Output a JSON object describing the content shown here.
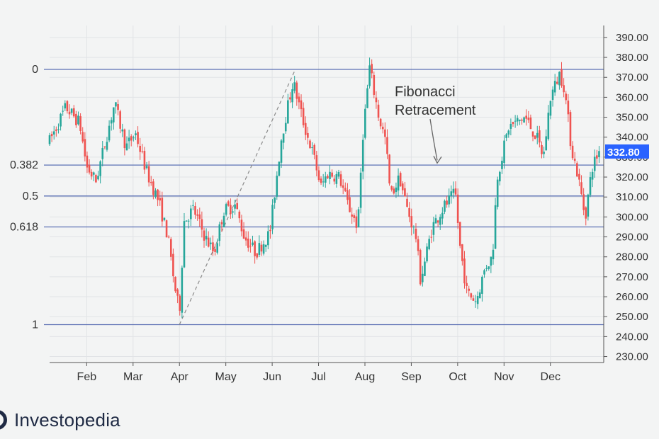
{
  "chart_data": {
    "type": "candlestick",
    "y_axis": {
      "ticks": [
        "390.00",
        "380.00",
        "370.00",
        "360.00",
        "350.00",
        "340.00",
        "330.00",
        "320.00",
        "310.00",
        "300.00",
        "290.00",
        "280.00",
        "270.00",
        "260.00",
        "250.00",
        "240.00",
        "230.00"
      ],
      "tick_values": [
        390,
        380,
        370,
        360,
        350,
        340,
        330,
        320,
        310,
        300,
        290,
        280,
        270,
        260,
        250,
        240,
        230
      ],
      "range": [
        227,
        396
      ],
      "position": "right"
    },
    "x_axis": {
      "ticks": [
        "Feb",
        "Mar",
        "Apr",
        "May",
        "Jun",
        "Jul",
        "Aug",
        "Sep",
        "Oct",
        "Nov",
        "Dec"
      ],
      "tick_positions": [
        1,
        2,
        3,
        4,
        5,
        6,
        7,
        8,
        9,
        10,
        11
      ],
      "range": [
        0.2,
        12.15
      ]
    },
    "last_price": {
      "label": "332.80",
      "value": 332.8,
      "color": "#2962ff"
    },
    "fib_levels": [
      {
        "label": "0",
        "value": 374
      },
      {
        "label": "0.382",
        "value": 326
      },
      {
        "label": "0.5",
        "value": 310.5
      },
      {
        "label": "0.618",
        "value": 295
      },
      {
        "label": "1",
        "value": 246
      }
    ],
    "trend_line": {
      "from": {
        "x": 3.0,
        "y": 246
      },
      "to": {
        "x": 5.5,
        "y": 374
      }
    },
    "annotation": {
      "lines": [
        "Fibonacci",
        "Retracement"
      ],
      "arrow_target_value": 327
    },
    "colors": {
      "up": "#26a69a",
      "down": "#ef5350",
      "fib_line": "#5b6fb3",
      "grid": "#e1e3e6"
    },
    "key_prices": [
      {
        "x": 0.2,
        "value": 338
      },
      {
        "x": 0.55,
        "value": 355
      },
      {
        "x": 0.85,
        "value": 347
      },
      {
        "x": 1.0,
        "value": 325
      },
      {
        "x": 1.2,
        "value": 318
      },
      {
        "x": 1.6,
        "value": 357
      },
      {
        "x": 1.85,
        "value": 335
      },
      {
        "x": 2.05,
        "value": 342
      },
      {
        "x": 2.3,
        "value": 322
      },
      {
        "x": 2.55,
        "value": 308
      },
      {
        "x": 2.75,
        "value": 290
      },
      {
        "x": 2.9,
        "value": 265
      },
      {
        "x": 3.0,
        "value": 252
      },
      {
        "x": 3.1,
        "value": 298
      },
      {
        "x": 3.3,
        "value": 304
      },
      {
        "x": 3.55,
        "value": 290
      },
      {
        "x": 3.75,
        "value": 282
      },
      {
        "x": 3.95,
        "value": 303
      },
      {
        "x": 4.2,
        "value": 306
      },
      {
        "x": 4.4,
        "value": 290
      },
      {
        "x": 4.65,
        "value": 282
      },
      {
        "x": 4.95,
        "value": 292
      },
      {
        "x": 5.2,
        "value": 340
      },
      {
        "x": 5.45,
        "value": 368
      },
      {
        "x": 5.7,
        "value": 345
      },
      {
        "x": 5.9,
        "value": 330
      },
      {
        "x": 6.05,
        "value": 315
      },
      {
        "x": 6.2,
        "value": 322
      },
      {
        "x": 6.45,
        "value": 320
      },
      {
        "x": 6.65,
        "value": 305
      },
      {
        "x": 6.85,
        "value": 295
      },
      {
        "x": 6.95,
        "value": 340
      },
      {
        "x": 7.1,
        "value": 375
      },
      {
        "x": 7.3,
        "value": 350
      },
      {
        "x": 7.45,
        "value": 338
      },
      {
        "x": 7.55,
        "value": 310
      },
      {
        "x": 7.75,
        "value": 320
      },
      {
        "x": 7.9,
        "value": 305
      },
      {
        "x": 8.1,
        "value": 290
      },
      {
        "x": 8.2,
        "value": 268
      },
      {
        "x": 8.45,
        "value": 295
      },
      {
        "x": 8.7,
        "value": 305
      },
      {
        "x": 8.95,
        "value": 312
      },
      {
        "x": 9.05,
        "value": 285
      },
      {
        "x": 9.2,
        "value": 262
      },
      {
        "x": 9.4,
        "value": 258
      },
      {
        "x": 9.6,
        "value": 275
      },
      {
        "x": 9.75,
        "value": 280
      },
      {
        "x": 9.85,
        "value": 320
      },
      {
        "x": 10.1,
        "value": 345
      },
      {
        "x": 10.45,
        "value": 350
      },
      {
        "x": 10.7,
        "value": 340
      },
      {
        "x": 10.85,
        "value": 330
      },
      {
        "x": 11.0,
        "value": 360
      },
      {
        "x": 11.2,
        "value": 372
      },
      {
        "x": 11.3,
        "value": 365
      },
      {
        "x": 11.45,
        "value": 335
      },
      {
        "x": 11.6,
        "value": 320
      },
      {
        "x": 11.75,
        "value": 300
      },
      {
        "x": 11.9,
        "value": 325
      },
      {
        "x": 12.05,
        "value": 333
      }
    ]
  },
  "brand": {
    "name": "Investopedia"
  }
}
